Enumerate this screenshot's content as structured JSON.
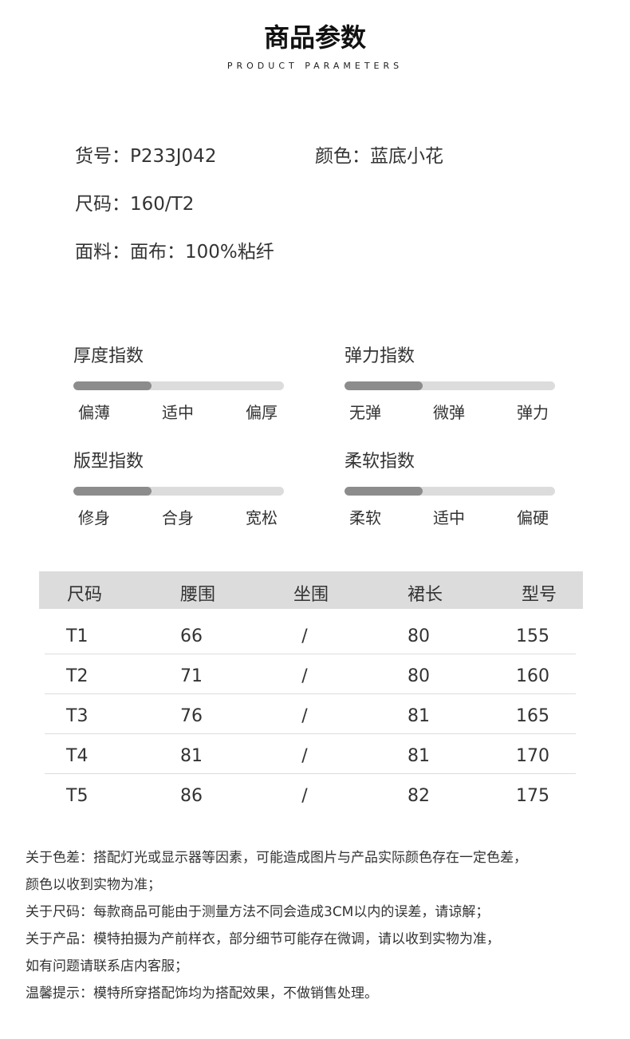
{
  "header": {
    "title": "商品参数",
    "subtitle": "PRODUCT PARAMETERS"
  },
  "info": {
    "item_no": "货号：P233J042",
    "color": "颜色：蓝底小花",
    "size": "尺码：160/T2",
    "fabric": "面料：面布：100%粘纤"
  },
  "indicators": [
    {
      "title": "厚度指数",
      "labels": [
        "偏薄",
        "适中",
        "偏厚"
      ],
      "level_percent": 37
    },
    {
      "title": "弹力指数",
      "labels": [
        "无弹",
        "微弹",
        "弹力"
      ],
      "level_percent": 37
    },
    {
      "title": "版型指数",
      "labels": [
        "修身",
        "合身",
        "宽松"
      ],
      "level_percent": 37
    },
    {
      "title": "柔软指数",
      "labels": [
        "柔软",
        "适中",
        "偏硬"
      ],
      "level_percent": 37
    }
  ],
  "size_table": {
    "headers": [
      "尺码",
      "腰围",
      "坐围",
      "裙长",
      "型号"
    ],
    "rows": [
      [
        "T1",
        "66",
        "/",
        "80",
        "155"
      ],
      [
        "T2",
        "71",
        "/",
        "80",
        "160"
      ],
      [
        "T3",
        "76",
        "/",
        "81",
        "165"
      ],
      [
        "T4",
        "81",
        "/",
        "81",
        "170"
      ],
      [
        "T5",
        "86",
        "/",
        "82",
        "175"
      ]
    ]
  },
  "notes": [
    "关于色差：搭配灯光或显示器等因素，可能造成图片与产品实际颜色存在一定色差，",
    "颜色以收到实物为准；",
    "关于尺码：每款商品可能由于测量方法不同会造成3CM以内的误差，请谅解；",
    "关于产品：模特拍摄为产前样衣，部分细节可能存在微调，请以收到实物为准，",
    "如有问题请联系店内客服；",
    "温馨提示：模特所穿搭配饰均为搭配效果，不做销售处理。"
  ],
  "colors": {
    "bar_fill": "#8c8c8c",
    "bar_track": "#dcdcdc",
    "table_header": "#dcdcdc"
  }
}
